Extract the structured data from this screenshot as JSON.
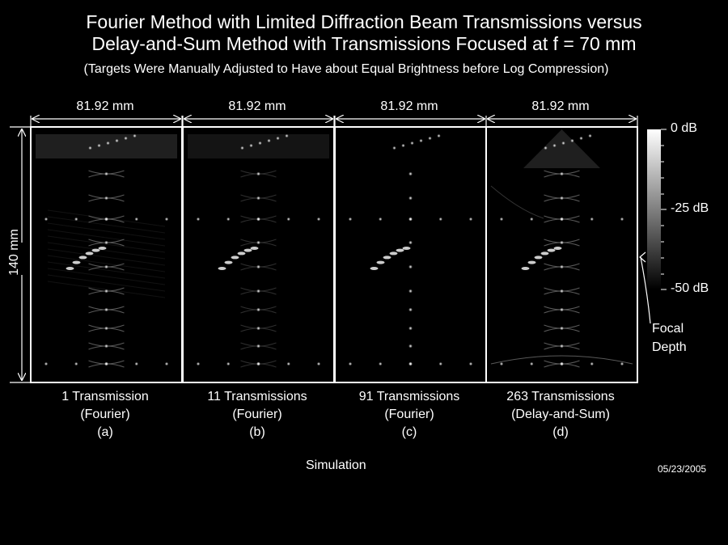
{
  "title_line1": "Fourier Method with Limited Diffraction Beam Transmissions versus",
  "title_line2": "Delay-and-Sum Method with Transmissions Focused at f = 70 mm",
  "subtitle": "(Targets Were Manually Adjusted to Have about Equal Brightness before Log Compression)",
  "depth_label": "140 mm",
  "panels": [
    {
      "width_label": "81.92 mm",
      "caption_line1": "1 Transmission",
      "caption_line2": "(Fourier)",
      "caption_line3": "(a)"
    },
    {
      "width_label": "81.92 mm",
      "caption_line1": "11 Transmissions",
      "caption_line2": "(Fourier)",
      "caption_line3": "(b)"
    },
    {
      "width_label": "81.92 mm",
      "caption_line1": "91 Transmissions",
      "caption_line2": "(Fourier)",
      "caption_line3": "(c)"
    },
    {
      "width_label": "81.92 mm",
      "caption_line1": "263 Transmissions",
      "caption_line2": "(Delay-and-Sum)",
      "caption_line3": "(d)"
    }
  ],
  "colorbar": {
    "top_label": "0 dB",
    "mid_label": "-25 dB",
    "bottom_label": "-50 dB"
  },
  "focal_label_line1": "Focal",
  "focal_label_line2": "Depth",
  "footer_label": "Simulation",
  "date": "05/23/2005"
}
